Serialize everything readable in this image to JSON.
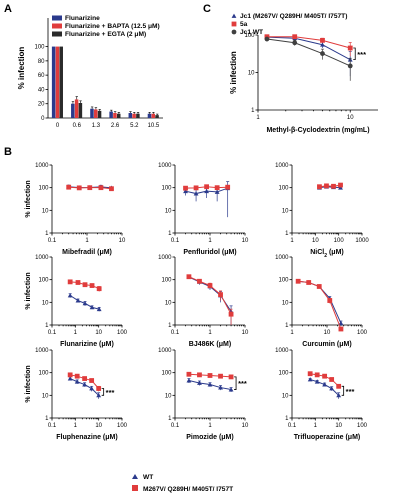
{
  "panel_labels": {
    "a": "A",
    "b": "B",
    "c": "C"
  },
  "chart_data": [
    {
      "id": "A",
      "type": "bar",
      "ylabel": "% infection",
      "ylim": [
        0,
        140
      ],
      "yticks": [
        0,
        20,
        40,
        60,
        80,
        100
      ],
      "categories": [
        "0",
        "0.6",
        "1.3",
        "2.6",
        "5.2",
        "10.5"
      ],
      "series": [
        {
          "name": "Flunarizine",
          "color": "#2b3a8c",
          "values": [
            100,
            20,
            13,
            9,
            7,
            6
          ],
          "errors": [
            0,
            3,
            2.5,
            2,
            2,
            2
          ]
        },
        {
          "name": "Flunarizine + BAPTA (12.5 μM)",
          "color": "#e03c3c",
          "values": [
            100,
            26,
            12,
            7,
            6,
            6
          ],
          "errors": [
            0,
            4,
            2.5,
            2,
            2,
            2
          ]
        },
        {
          "name": "Flunarizine + EGTA (2 μM)",
          "color": "#2a2a2a",
          "values": [
            100,
            21,
            10,
            6,
            6,
            4
          ],
          "errors": [
            0,
            3,
            2,
            2,
            2,
            1.5
          ]
        }
      ],
      "legend": "top"
    },
    {
      "id": "C",
      "type": "line",
      "xscale": "log",
      "yscale": "log",
      "xlabel": "Methyl-β-Cyclodextrin (mg/mL)",
      "ylabel": "% infection",
      "xlim": [
        1,
        20
      ],
      "ylim": [
        1,
        100
      ],
      "xticks": [
        1,
        10
      ],
      "yticks": [
        1,
        10,
        100
      ],
      "series": [
        {
          "name": "Jc1 (M267V/ Q289H/ M405T/ I757T)",
          "color": "#2b3a8c",
          "marker": "triangle",
          "x": [
            1.25,
            2.5,
            5,
            10
          ],
          "y": [
            88,
            82,
            55,
            22
          ],
          "err": [
            4,
            8,
            10,
            14
          ]
        },
        {
          "name": "5a",
          "color": "#e03c3c",
          "marker": "square",
          "x": [
            1.25,
            2.5,
            5,
            10
          ],
          "y": [
            90,
            90,
            72,
            45
          ],
          "err": [
            4,
            6,
            10,
            18
          ]
        },
        {
          "name": "Jc1 WT",
          "color": "#404040",
          "marker": "circle",
          "x": [
            1.25,
            2.5,
            5,
            10
          ],
          "y": [
            78,
            62,
            32,
            15
          ],
          "err": [
            6,
            10,
            10,
            9
          ]
        }
      ],
      "annotation": "***"
    },
    {
      "id": "B1",
      "type": "line",
      "xscale": "log",
      "yscale": "log",
      "xlabel": "Mibefradil (μM)",
      "ylabel": "% infection",
      "xlim": [
        0.1,
        10
      ],
      "ylim": [
        1,
        1000
      ],
      "xticks": [
        0.1,
        1,
        10
      ],
      "yticks": [
        1,
        10,
        100,
        1000
      ],
      "series": [
        {
          "name": "WT",
          "color": "#2b3a8c",
          "marker": "triangle",
          "x": [
            0.3,
            0.6,
            1.2,
            2.5,
            5
          ],
          "y": [
            110,
            100,
            102,
            108,
            98
          ],
          "err": [
            20,
            10,
            10,
            20,
            10
          ]
        },
        {
          "name": "M267V/ Q289H/ M405T/ I757T",
          "color": "#e03c3c",
          "marker": "square",
          "x": [
            0.3,
            0.6,
            1.2,
            2.5,
            5
          ],
          "y": [
            105,
            98,
            100,
            100,
            90
          ],
          "err": [
            10,
            10,
            10,
            10,
            10
          ]
        }
      ]
    },
    {
      "id": "B2",
      "type": "line",
      "xscale": "log",
      "yscale": "log",
      "xlabel": "Penfluridol (μM)",
      "xlim": [
        0.1,
        10
      ],
      "ylim": [
        1,
        1000
      ],
      "xticks": [
        0.1,
        1,
        10
      ],
      "yticks": [
        1,
        10,
        100,
        1000
      ],
      "series": [
        {
          "name": "WT",
          "color": "#2b3a8c",
          "marker": "triangle",
          "x": [
            0.2,
            0.4,
            0.8,
            1.6,
            3.2
          ],
          "y": [
            70,
            55,
            70,
            65,
            95
          ],
          "err": [
            25,
            30,
            35,
            40,
            90
          ]
        },
        {
          "name": "M267V/ Q289H/ M405T/ I757T",
          "color": "#e03c3c",
          "marker": "square",
          "x": [
            0.2,
            0.4,
            0.8,
            1.6,
            3.2
          ],
          "y": [
            95,
            98,
            110,
            100,
            105
          ],
          "err": [
            10,
            10,
            15,
            10,
            10
          ]
        }
      ]
    },
    {
      "id": "B3",
      "type": "line",
      "xscale": "log",
      "yscale": "log",
      "xlabel": "NiCl2 (μM)",
      "xlabel_main": "NiCl",
      "xlabel_sub": "2",
      "xlabel_unit": " (μM)",
      "xlim": [
        1,
        1000
      ],
      "ylim": [
        1,
        1000
      ],
      "xticks": [
        1,
        10,
        100,
        1000
      ],
      "yticks": [
        1,
        10,
        100,
        1000
      ],
      "series": [
        {
          "name": "WT",
          "color": "#2b3a8c",
          "marker": "triangle",
          "x": [
            15,
            30,
            60,
            120
          ],
          "y": [
            100,
            110,
            105,
            100
          ],
          "err": [
            10,
            10,
            10,
            10
          ]
        },
        {
          "name": "M267V/ Q289H/ M405T/ I757T",
          "color": "#e03c3c",
          "marker": "square",
          "x": [
            15,
            30,
            60,
            120
          ],
          "y": [
            110,
            120,
            115,
            130
          ],
          "err": [
            10,
            10,
            10,
            10
          ]
        }
      ]
    },
    {
      "id": "B4",
      "type": "line",
      "xscale": "log",
      "yscale": "log",
      "xlabel": "Flunarizine (μM)",
      "ylabel": "% infection",
      "xlim": [
        0.1,
        100
      ],
      "ylim": [
        1,
        1000
      ],
      "xticks": [
        0.1,
        1,
        10,
        100
      ],
      "yticks": [
        1,
        10,
        100,
        1000
      ],
      "series": [
        {
          "name": "WT",
          "color": "#2b3a8c",
          "marker": "triangle",
          "x": [
            0.6,
            1.3,
            2.6,
            5.2,
            10.5
          ],
          "y": [
            20,
            12,
            9,
            6,
            5
          ],
          "err": [
            4,
            2,
            2,
            1,
            1
          ]
        },
        {
          "name": "M267V/ Q289H/ M405T/ I757T",
          "color": "#e03c3c",
          "marker": "square",
          "x": [
            0.6,
            1.3,
            2.6,
            5.2,
            10.5
          ],
          "y": [
            80,
            75,
            60,
            55,
            40
          ],
          "err": [
            10,
            10,
            10,
            10,
            10
          ]
        }
      ]
    },
    {
      "id": "B5",
      "type": "line",
      "xscale": "log",
      "yscale": "log",
      "xlabel": "BJ486K (μM)",
      "xlim": [
        0.1,
        10
      ],
      "ylim": [
        1,
        1000
      ],
      "xticks": [
        0.1,
        1,
        10
      ],
      "yticks": [
        1,
        10,
        100,
        1000
      ],
      "series": [
        {
          "name": "WT",
          "color": "#2b3a8c",
          "marker": "triangle",
          "x": [
            0.25,
            0.5,
            1,
            2,
            4
          ],
          "y": [
            130,
            80,
            50,
            20,
            4
          ],
          "err": [
            10,
            20,
            15,
            10,
            3
          ]
        },
        {
          "name": "M267V/ Q289H/ M405T/ I757T",
          "color": "#e03c3c",
          "marker": "square",
          "x": [
            0.25,
            0.5,
            1,
            2,
            4
          ],
          "y": [
            135,
            85,
            55,
            22,
            3
          ],
          "err": [
            10,
            15,
            15,
            10,
            2
          ]
        }
      ]
    },
    {
      "id": "B6",
      "type": "line",
      "xscale": "log",
      "yscale": "log",
      "xlabel": "Curcumin (μM)",
      "xlim": [
        1,
        100
      ],
      "ylim": [
        1,
        1000
      ],
      "xticks": [
        1,
        10,
        100
      ],
      "yticks": [
        1,
        10,
        100,
        1000
      ],
      "series": [
        {
          "name": "WT",
          "color": "#2b3a8c",
          "marker": "triangle",
          "x": [
            1.5,
            3,
            6,
            12,
            25
          ],
          "y": [
            85,
            75,
            50,
            15,
            1.2
          ],
          "err": [
            5,
            5,
            5,
            3,
            0.3
          ]
        },
        {
          "name": "M267V/ Q289H/ M405T/ I757T",
          "color": "#e03c3c",
          "marker": "square",
          "x": [
            1.5,
            3,
            6,
            12,
            25
          ],
          "y": [
            85,
            75,
            50,
            12,
            0.5
          ],
          "err": [
            5,
            5,
            5,
            3,
            0.2
          ]
        }
      ]
    },
    {
      "id": "B7",
      "type": "line",
      "xscale": "log",
      "yscale": "log",
      "xlabel": "Fluphenazine (μM)",
      "ylabel": "% infection",
      "xlim": [
        0.1,
        100
      ],
      "ylim": [
        1,
        1000
      ],
      "xticks": [
        0.1,
        1,
        10,
        100
      ],
      "yticks": [
        1,
        10,
        100,
        1000
      ],
      "series": [
        {
          "name": "WT",
          "color": "#2b3a8c",
          "marker": "triangle",
          "x": [
            0.6,
            1.2,
            2.5,
            5,
            10
          ],
          "y": [
            55,
            40,
            30,
            20,
            10
          ],
          "err": [
            10,
            8,
            6,
            5,
            3
          ]
        },
        {
          "name": "M267V/ Q289H/ M405T/ I757T",
          "color": "#e03c3c",
          "marker": "square",
          "x": [
            0.6,
            1.2,
            2.5,
            5,
            10
          ],
          "y": [
            80,
            70,
            55,
            45,
            20
          ],
          "err": [
            10,
            10,
            10,
            8,
            5
          ]
        }
      ],
      "annotation": "***"
    },
    {
      "id": "B8",
      "type": "line",
      "xscale": "log",
      "yscale": "log",
      "xlabel": "Pimozide (μM)",
      "xlim": [
        0.1,
        10
      ],
      "ylim": [
        1,
        1000
      ],
      "xticks": [
        0.1,
        1,
        10
      ],
      "yticks": [
        1,
        10,
        100,
        1000
      ],
      "series": [
        {
          "name": "WT",
          "color": "#2b3a8c",
          "marker": "triangle",
          "x": [
            0.25,
            0.5,
            1,
            2,
            4
          ],
          "y": [
            45,
            35,
            30,
            22,
            18
          ],
          "err": [
            10,
            8,
            6,
            5,
            4
          ]
        },
        {
          "name": "M267V/ Q289H/ M405T/ I757T",
          "color": "#e03c3c",
          "marker": "square",
          "x": [
            0.25,
            0.5,
            1,
            2,
            4
          ],
          "y": [
            85,
            80,
            75,
            70,
            65
          ],
          "err": [
            10,
            10,
            10,
            10,
            10
          ]
        }
      ],
      "annotation": "***"
    },
    {
      "id": "B9",
      "type": "line",
      "xscale": "log",
      "yscale": "log",
      "xlabel": "Trifluoperazine (μM)",
      "xlim": [
        0.1,
        100
      ],
      "ylim": [
        1,
        1000
      ],
      "xticks": [
        0.1,
        1,
        10,
        100
      ],
      "yticks": [
        1,
        10,
        100,
        1000
      ],
      "series": [
        {
          "name": "WT",
          "color": "#2b3a8c",
          "marker": "triangle",
          "x": [
            0.6,
            1.2,
            2.5,
            5,
            10
          ],
          "y": [
            50,
            40,
            30,
            20,
            10
          ],
          "err": [
            5,
            5,
            5,
            4,
            3
          ]
        },
        {
          "name": "M267V/ Q289H/ M405T/ I757T",
          "color": "#e03c3c",
          "marker": "square",
          "x": [
            0.6,
            1.2,
            2.5,
            5,
            10
          ],
          "y": [
            90,
            80,
            70,
            50,
            25
          ],
          "err": [
            10,
            10,
            10,
            8,
            5
          ]
        }
      ],
      "annotation": "***"
    }
  ],
  "legend_b": {
    "wt": "WT",
    "mut": "M267V/ Q289H/ M405T/ I757T",
    "wt_color": "#2b3a8c",
    "mut_color": "#e03c3c"
  }
}
